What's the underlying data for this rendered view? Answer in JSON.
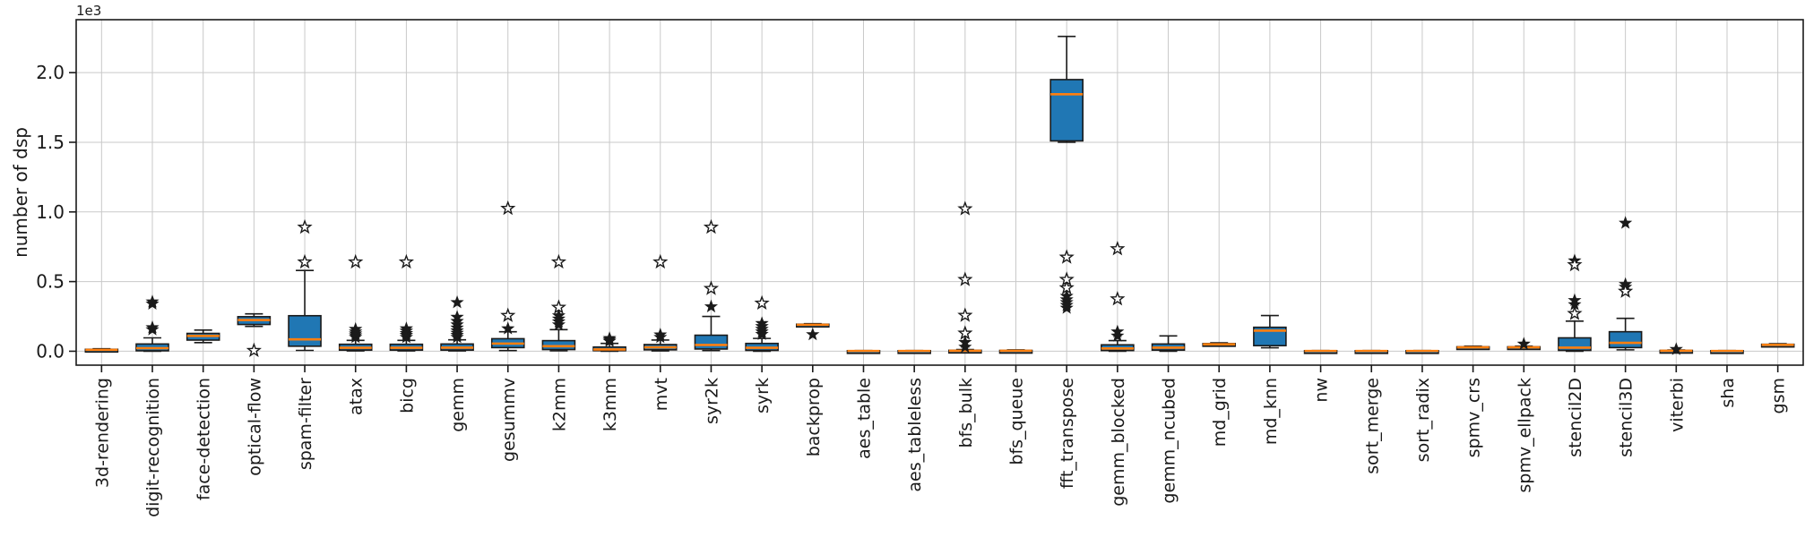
{
  "figure": {
    "background": "#ffffff",
    "axes_background": "#ffffff",
    "spine_color": "#1a1a1a",
    "grid_color": "#c9c9c9",
    "grid_on": true
  },
  "colors": {
    "box_fill": "#2077b4",
    "box_edge": "#1a1a1a",
    "median": "#ff7f0e",
    "whisker": "#1a1a1a",
    "flier": "#1a1a1a"
  },
  "chart_data": {
    "type": "boxplot",
    "title": "",
    "xlabel": "",
    "ylabel": "number of dsp",
    "y_offset_label": "1e3",
    "ylim": [
      -100,
      2380
    ],
    "grid": true,
    "legend": "none",
    "yticks": [
      {
        "v": 0,
        "label": "0.0"
      },
      {
        "v": 500,
        "label": "0.5"
      },
      {
        "v": 1000,
        "label": "1.0"
      },
      {
        "v": 1500,
        "label": "1.5"
      },
      {
        "v": 2000,
        "label": "2.0"
      }
    ],
    "categories": [
      "3d-rendering",
      "digit-recognition",
      "face-detection",
      "optical-flow",
      "spam-filter",
      "atax",
      "bicg",
      "gemm",
      "gesummv",
      "k2mm",
      "k3mm",
      "mvt",
      "syr2k",
      "syrk",
      "backprop",
      "aes_table",
      "aes_tableless",
      "bfs_bulk",
      "bfs_queue",
      "fft_transpose",
      "gemm_blocked",
      "gemm_ncubed",
      "md_grid",
      "md_knn",
      "nw",
      "sort_merge",
      "sort_radix",
      "spmv_crs",
      "spmv_ellpack",
      "stencil2D",
      "stencil3D",
      "viterbi",
      "sha",
      "gsm"
    ],
    "boxes": [
      {
        "label": "3d-rendering",
        "whislo": 2,
        "q1": 5,
        "med": 10,
        "q3": 14,
        "whishi": 18,
        "fliers": [],
        "open_fliers": []
      },
      {
        "label": "digit-recognition",
        "whislo": 0,
        "q1": 3,
        "med": 22,
        "q3": 52,
        "whishi": 96,
        "fliers": [
          155,
          170,
          340,
          355
        ],
        "open_fliers": []
      },
      {
        "label": "face-detection",
        "whislo": 62,
        "q1": 80,
        "med": 110,
        "q3": 128,
        "whishi": 152,
        "fliers": [],
        "open_fliers": []
      },
      {
        "label": "optical-flow",
        "whislo": 178,
        "q1": 192,
        "med": 224,
        "q3": 248,
        "whishi": 268,
        "fliers": [],
        "open_fliers": [
          5
        ]
      },
      {
        "label": "spam-filter",
        "whislo": 6,
        "q1": 36,
        "med": 85,
        "q3": 255,
        "whishi": 580,
        "fliers": [],
        "open_fliers": [
          640,
          890
        ]
      },
      {
        "label": "atax",
        "whislo": 2,
        "q1": 8,
        "med": 25,
        "q3": 50,
        "whishi": 78,
        "fliers": [
          100,
          112,
          125,
          140,
          158
        ],
        "open_fliers": [
          640
        ]
      },
      {
        "label": "bicg",
        "whislo": 2,
        "q1": 8,
        "med": 25,
        "q3": 50,
        "whishi": 78,
        "fliers": [
          100,
          115,
          128,
          145,
          162
        ],
        "open_fliers": [
          640
        ]
      },
      {
        "label": "gemm",
        "whislo": 2,
        "q1": 8,
        "med": 26,
        "q3": 52,
        "whishi": 82,
        "fliers": [
          100,
          115,
          130,
          148,
          168,
          190,
          215,
          245,
          350
        ],
        "open_fliers": []
      },
      {
        "label": "gesummv",
        "whislo": 5,
        "q1": 26,
        "med": 55,
        "q3": 90,
        "whishi": 140,
        "fliers": [
          162
        ],
        "open_fliers": [
          256,
          1025
        ]
      },
      {
        "label": "k2mm",
        "whislo": 3,
        "q1": 12,
        "med": 36,
        "q3": 76,
        "whishi": 155,
        "fliers": [
          190,
          212,
          232,
          255
        ],
        "open_fliers": [
          315,
          640
        ]
      },
      {
        "label": "k3mm",
        "whislo": 0,
        "q1": 4,
        "med": 13,
        "q3": 30,
        "whishi": 56,
        "fliers": [
          72,
          82,
          92
        ],
        "open_fliers": []
      },
      {
        "label": "mvt",
        "whislo": 2,
        "q1": 10,
        "med": 28,
        "q3": 48,
        "whishi": 80,
        "fliers": [
          100,
          118
        ],
        "open_fliers": [
          640
        ]
      },
      {
        "label": "syr2k",
        "whislo": 5,
        "q1": 16,
        "med": 45,
        "q3": 115,
        "whishi": 250,
        "fliers": [
          320
        ],
        "open_fliers": [
          450,
          890
        ]
      },
      {
        "label": "syrk",
        "whislo": 0,
        "q1": 6,
        "med": 25,
        "q3": 56,
        "whishi": 92,
        "fliers": [
          122,
          140,
          158,
          178,
          200
        ],
        "open_fliers": [
          345
        ]
      },
      {
        "label": "backprop",
        "whislo": 182,
        "q1": 186,
        "med": 190,
        "q3": 194,
        "whishi": 198,
        "fliers": [
          120
        ],
        "open_fliers": []
      },
      {
        "label": "aes_table",
        "whislo": 0,
        "q1": 1,
        "med": 2,
        "q3": 4,
        "whishi": 5,
        "fliers": [],
        "open_fliers": []
      },
      {
        "label": "aes_tableless",
        "whislo": 0,
        "q1": 1,
        "med": 2,
        "q3": 4,
        "whishi": 5,
        "fliers": [],
        "open_fliers": []
      },
      {
        "label": "bfs_bulk",
        "whislo": 0,
        "q1": 1,
        "med": 3,
        "q3": 7,
        "whishi": 12,
        "fliers": [
          30,
          64
        ],
        "open_fliers": [
          129,
          257,
          514,
          1022
        ]
      },
      {
        "label": "bfs_queue",
        "whislo": 0,
        "q1": 1,
        "med": 3,
        "q3": 6,
        "whishi": 10,
        "fliers": [],
        "open_fliers": []
      },
      {
        "label": "fft_transpose",
        "whislo": 1500,
        "q1": 1510,
        "med": 1845,
        "q3": 1950,
        "whishi": 2260,
        "fliers": [
          310,
          330,
          350,
          370,
          395
        ],
        "open_fliers": [
          455,
          515,
          675
        ]
      },
      {
        "label": "gemm_blocked",
        "whislo": 0,
        "q1": 5,
        "med": 20,
        "q3": 46,
        "whishi": 76,
        "fliers": [
          110,
          140
        ],
        "open_fliers": [
          375,
          735
        ]
      },
      {
        "label": "gemm_ncubed",
        "whislo": 0,
        "q1": 8,
        "med": 26,
        "q3": 52,
        "whishi": 110,
        "fliers": [],
        "open_fliers": []
      },
      {
        "label": "md_grid",
        "whislo": 42,
        "q1": 46,
        "med": 50,
        "q3": 55,
        "whishi": 60,
        "fliers": [],
        "open_fliers": []
      },
      {
        "label": "md_knn",
        "whislo": 25,
        "q1": 40,
        "med": 148,
        "q3": 172,
        "whishi": 256,
        "fliers": [],
        "open_fliers": []
      },
      {
        "label": "nw",
        "whislo": 0,
        "q1": 1,
        "med": 2,
        "q3": 4,
        "whishi": 5,
        "fliers": [],
        "open_fliers": []
      },
      {
        "label": "sort_merge",
        "whislo": 0,
        "q1": 1,
        "med": 2,
        "q3": 4,
        "whishi": 5,
        "fliers": [],
        "open_fliers": []
      },
      {
        "label": "sort_radix",
        "whislo": 0,
        "q1": 1,
        "med": 2,
        "q3": 4,
        "whishi": 5,
        "fliers": [],
        "open_fliers": []
      },
      {
        "label": "spmv_crs",
        "whislo": 20,
        "q1": 24,
        "med": 28,
        "q3": 32,
        "whishi": 36,
        "fliers": [],
        "open_fliers": []
      },
      {
        "label": "spmv_ellpack",
        "whislo": 20,
        "q1": 24,
        "med": 28,
        "q3": 32,
        "whishi": 36,
        "fliers": [
          52
        ],
        "open_fliers": []
      },
      {
        "label": "stencil2D",
        "whislo": 0,
        "q1": 6,
        "med": 26,
        "q3": 96,
        "whishi": 216,
        "fliers": [
          335,
          365,
          650
        ],
        "open_fliers": [
          270,
          620
        ]
      },
      {
        "label": "stencil3D",
        "whislo": 10,
        "q1": 26,
        "med": 60,
        "q3": 140,
        "whishi": 236,
        "fliers": [
          460,
          480,
          920
        ],
        "open_fliers": [
          430
        ]
      },
      {
        "label": "viterbi",
        "whislo": 0,
        "q1": 1,
        "med": 3,
        "q3": 6,
        "whishi": 9,
        "fliers": [
          14
        ],
        "open_fliers": []
      },
      {
        "label": "sha",
        "whislo": 0,
        "q1": 1,
        "med": 2,
        "q3": 4,
        "whishi": 5,
        "fliers": [],
        "open_fliers": []
      },
      {
        "label": "gsm",
        "whislo": 38,
        "q1": 42,
        "med": 46,
        "q3": 50,
        "whishi": 54,
        "fliers": [],
        "open_fliers": []
      }
    ]
  }
}
